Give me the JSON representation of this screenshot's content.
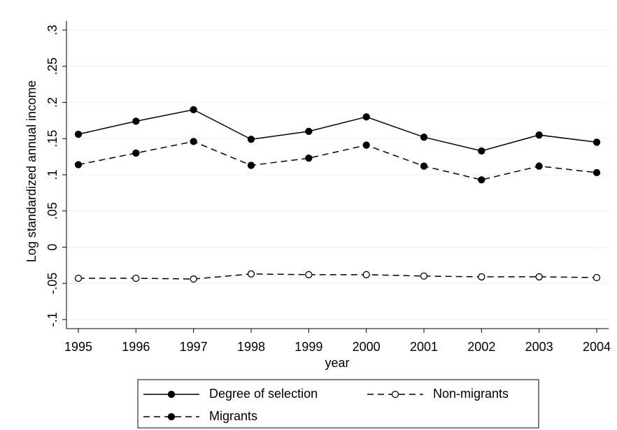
{
  "chart_data": {
    "type": "line",
    "x_label": "year",
    "y_label": "Log standardized annual income",
    "x": [
      1995,
      1996,
      1997,
      1998,
      1999,
      2000,
      2001,
      2002,
      2003,
      2004
    ],
    "xlim": [
      1995,
      2004
    ],
    "xticks": [
      1995,
      1996,
      1997,
      1998,
      1999,
      2000,
      2001,
      2002,
      2003,
      2004
    ],
    "ylim": [
      -0.1,
      0.3
    ],
    "yticks": [
      {
        "value": -0.1,
        "label": "-.1"
      },
      {
        "value": -0.05,
        "label": "-.05"
      },
      0,
      {
        "value": 0.05,
        "label": ".05"
      },
      {
        "value": 0.1,
        "label": ".1"
      },
      {
        "value": 0.15,
        "label": ".15"
      },
      {
        "value": 0.2,
        "label": ".2"
      },
      {
        "value": 0.25,
        "label": ".25"
      },
      {
        "value": 0.3,
        "label": ".3"
      }
    ],
    "grid": true,
    "series": [
      {
        "name": "Degree of selection",
        "color": "#000000",
        "line_style": "solid",
        "marker_fill": "filled",
        "values": [
          0.156,
          0.174,
          0.19,
          0.149,
          0.16,
          0.18,
          0.152,
          0.133,
          0.155,
          0.145
        ]
      },
      {
        "name": "Non-migrants",
        "color": "#000000",
        "line_style": "dashed",
        "marker_fill": "hollow",
        "values": [
          -0.043,
          -0.043,
          -0.044,
          -0.037,
          -0.038,
          -0.038,
          -0.04,
          -0.041,
          -0.041,
          -0.042
        ]
      },
      {
        "name": "Migrants",
        "color": "#000000",
        "line_style": "dashed",
        "marker_fill": "filled",
        "values": [
          0.114,
          0.13,
          0.146,
          0.113,
          0.123,
          0.141,
          0.112,
          0.093,
          0.112,
          0.103
        ]
      }
    ]
  }
}
